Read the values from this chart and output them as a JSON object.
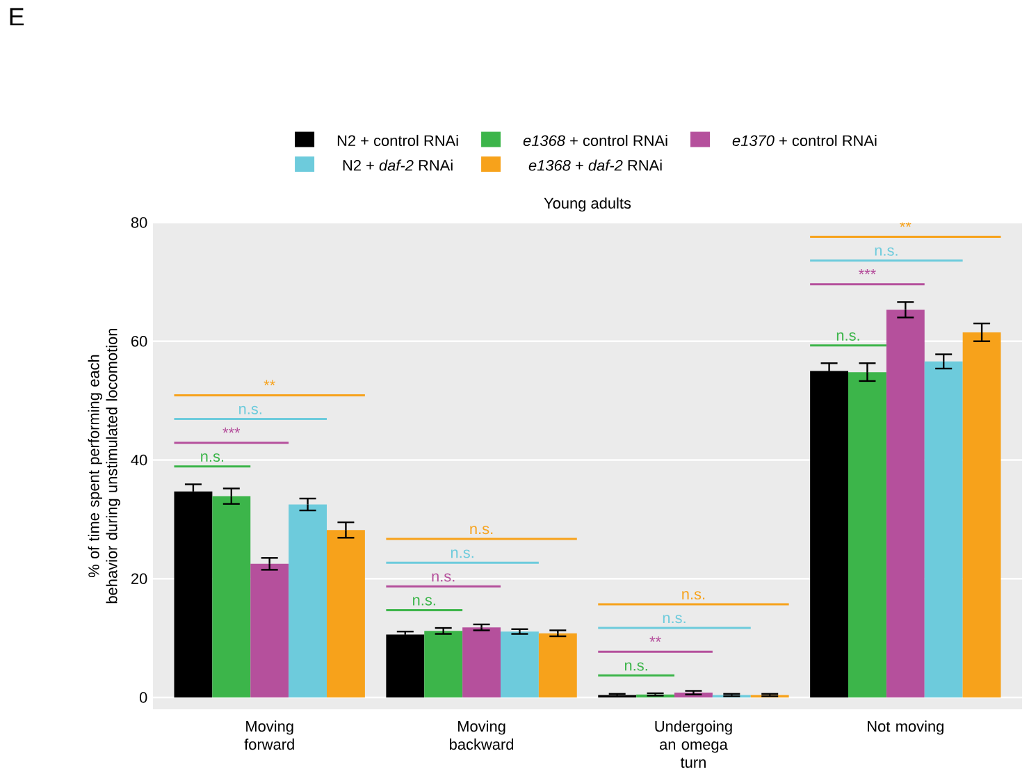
{
  "chart_data": {
    "type": "bar",
    "title": "Young adults",
    "ylabel": "% of time spent performing each behavior during unstimulated locomotion",
    "categories": [
      "Moving forward",
      "Moving backward",
      "Undergoing an omega turn",
      "Not moving"
    ],
    "series": [
      {
        "name": "N2 + control RNAi",
        "color": "#000000",
        "values": [
          34.7,
          10.6,
          0.4,
          55.0
        ],
        "errors": [
          1.2,
          0.5,
          0.2,
          1.3
        ]
      },
      {
        "name": "*e1368* + control RNAi",
        "color": "#3cb54a",
        "values": [
          33.9,
          11.2,
          0.5,
          54.8
        ],
        "errors": [
          1.3,
          0.5,
          0.2,
          1.5
        ]
      },
      {
        "name": "*e1370* + control RNAi",
        "color": "#b5509c",
        "values": [
          22.5,
          11.8,
          0.8,
          65.3
        ],
        "errors": [
          1.0,
          0.5,
          0.3,
          1.3
        ]
      },
      {
        "name": "N2 + *daf-2* RNAi",
        "color": "#6dcbdc",
        "values": [
          32.5,
          11.1,
          0.4,
          56.6
        ],
        "errors": [
          1.0,
          0.4,
          0.2,
          1.2
        ]
      },
      {
        "name": "*e1368* + *daf-2* RNAi",
        "color": "#f7a21b",
        "values": [
          28.2,
          10.8,
          0.4,
          61.5
        ],
        "errors": [
          1.3,
          0.5,
          0.2,
          1.5
        ]
      }
    ],
    "ylim": [
      -2,
      80
    ],
    "yticks": [
      0,
      20,
      40,
      60,
      80
    ],
    "grid": "y",
    "legend": "top",
    "annotations": [
      "n.s.",
      "***",
      "n.s.",
      "**",
      "n.s.",
      "n.s.",
      "n.s.",
      "n.s.",
      "n.s.",
      "**",
      "n.s.",
      "n.s.",
      "n.s.",
      "***",
      "n.s.",
      "**",
      "E"
    ]
  }
}
